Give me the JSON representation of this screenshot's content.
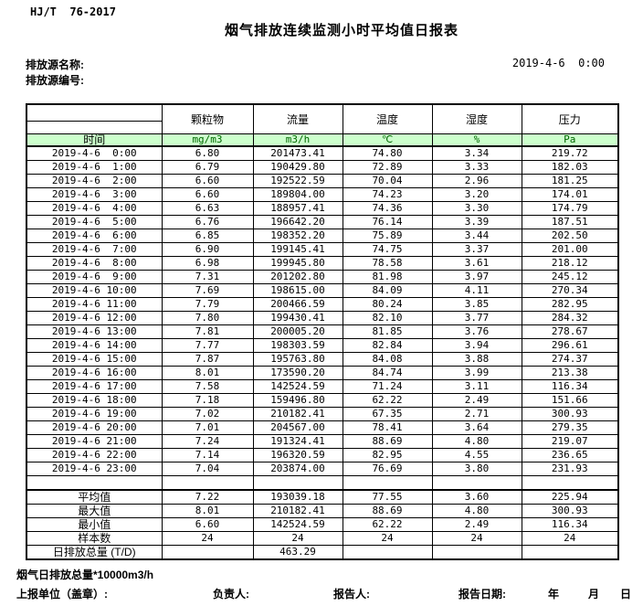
{
  "header": {
    "standard_no": "HJ/T  76-2017",
    "title": "烟气排放连续监测小时平均值日报表",
    "source_name_label": "排放源名称:",
    "source_id_label": "排放源编号:",
    "datetime": "2019-4-6  0:00"
  },
  "table": {
    "time_header": "时间",
    "columns": [
      {
        "name": "颗粒物",
        "unit": "mg/m3"
      },
      {
        "name": "流量",
        "unit": "m3/h"
      },
      {
        "name": "温度",
        "unit": "℃"
      },
      {
        "name": "湿度",
        "unit": "%"
      },
      {
        "name": "压力",
        "unit": "Pa"
      }
    ],
    "rows": [
      {
        "time": "2019-4-6  0:00",
        "values": [
          "6.80",
          "201473.41",
          "74.80",
          "3.34",
          "219.72"
        ]
      },
      {
        "time": "2019-4-6  1:00",
        "values": [
          "6.79",
          "190429.80",
          "72.89",
          "3.33",
          "182.03"
        ]
      },
      {
        "time": "2019-4-6  2:00",
        "values": [
          "6.60",
          "192522.59",
          "70.04",
          "2.96",
          "181.25"
        ]
      },
      {
        "time": "2019-4-6  3:00",
        "values": [
          "6.60",
          "189804.00",
          "74.23",
          "3.20",
          "174.01"
        ]
      },
      {
        "time": "2019-4-6  4:00",
        "values": [
          "6.63",
          "188957.41",
          "74.36",
          "3.30",
          "174.79"
        ]
      },
      {
        "time": "2019-4-6  5:00",
        "values": [
          "6.76",
          "196642.20",
          "76.14",
          "3.39",
          "187.51"
        ]
      },
      {
        "time": "2019-4-6  6:00",
        "values": [
          "6.85",
          "198352.20",
          "75.89",
          "3.44",
          "202.50"
        ]
      },
      {
        "time": "2019-4-6  7:00",
        "values": [
          "6.90",
          "199145.41",
          "74.75",
          "3.37",
          "201.00"
        ]
      },
      {
        "time": "2019-4-6  8:00",
        "values": [
          "6.98",
          "199945.80",
          "78.58",
          "3.61",
          "218.12"
        ]
      },
      {
        "time": "2019-4-6  9:00",
        "values": [
          "7.31",
          "201202.80",
          "81.98",
          "3.97",
          "245.12"
        ]
      },
      {
        "time": "2019-4-6 10:00",
        "values": [
          "7.69",
          "198615.00",
          "84.09",
          "4.11",
          "270.34"
        ]
      },
      {
        "time": "2019-4-6 11:00",
        "values": [
          "7.79",
          "200466.59",
          "80.24",
          "3.85",
          "282.95"
        ]
      },
      {
        "time": "2019-4-6 12:00",
        "values": [
          "7.80",
          "199430.41",
          "82.10",
          "3.77",
          "284.32"
        ]
      },
      {
        "time": "2019-4-6 13:00",
        "values": [
          "7.81",
          "200005.20",
          "81.85",
          "3.76",
          "278.67"
        ]
      },
      {
        "time": "2019-4-6 14:00",
        "values": [
          "7.77",
          "198303.59",
          "82.84",
          "3.94",
          "296.61"
        ]
      },
      {
        "time": "2019-4-6 15:00",
        "values": [
          "7.87",
          "195763.80",
          "84.08",
          "3.88",
          "274.37"
        ]
      },
      {
        "time": "2019-4-6 16:00",
        "values": [
          "8.01",
          "173590.20",
          "84.74",
          "3.99",
          "213.38"
        ]
      },
      {
        "time": "2019-4-6 17:00",
        "values": [
          "7.58",
          "142524.59",
          "71.24",
          "3.11",
          "116.34"
        ]
      },
      {
        "time": "2019-4-6 18:00",
        "values": [
          "7.18",
          "159496.80",
          "62.22",
          "2.49",
          "151.66"
        ]
      },
      {
        "time": "2019-4-6 19:00",
        "values": [
          "7.02",
          "210182.41",
          "67.35",
          "2.71",
          "300.93"
        ]
      },
      {
        "time": "2019-4-6 20:00",
        "values": [
          "7.01",
          "204567.00",
          "78.41",
          "3.64",
          "279.35"
        ]
      },
      {
        "time": "2019-4-6 21:00",
        "values": [
          "7.24",
          "191324.41",
          "88.69",
          "4.80",
          "219.07"
        ]
      },
      {
        "time": "2019-4-6 22:00",
        "values": [
          "7.14",
          "196320.59",
          "82.95",
          "4.55",
          "236.65"
        ]
      },
      {
        "time": "2019-4-6 23:00",
        "values": [
          "7.04",
          "203874.00",
          "76.69",
          "3.80",
          "231.93"
        ]
      }
    ],
    "summary": [
      {
        "label": "平均值",
        "values": [
          "7.22",
          "193039.18",
          "77.55",
          "3.60",
          "225.94"
        ]
      },
      {
        "label": "最大值",
        "values": [
          "8.01",
          "210182.41",
          "88.69",
          "4.80",
          "300.93"
        ]
      },
      {
        "label": "最小值",
        "values": [
          "6.60",
          "142524.59",
          "62.22",
          "2.49",
          "116.34"
        ]
      },
      {
        "label": "样本数",
        "values": [
          "24",
          "24",
          "24",
          "24",
          "24"
        ]
      },
      {
        "label": "日排放总量 (T/D)",
        "values": [
          "",
          "463.29",
          "",
          "",
          ""
        ]
      }
    ]
  },
  "footer": {
    "note": "烟气日排放总量*10000m3/h",
    "report_unit_label": "上报单位（盖章）:",
    "responsible_label": "负责人:",
    "reporter_label": "报告人:",
    "report_date_label": "报告日期:",
    "year_label": "年",
    "month_label": "月",
    "day_label": "日"
  },
  "colors": {
    "header_row_bg": "#ccffcc",
    "unit_text": "#006600",
    "border": "#000000"
  }
}
